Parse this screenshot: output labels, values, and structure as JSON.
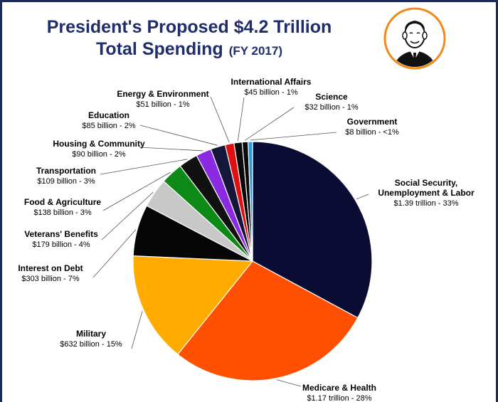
{
  "header": {
    "title_line1": "President's Proposed $4.2 Trillion",
    "title_line2": "Total Spending",
    "title_suffix": "(FY 2017)"
  },
  "avatar": {
    "icon": "president-portrait-icon",
    "ring_color": "#f08a1c"
  },
  "chart_data": {
    "type": "pie",
    "title": "President's Proposed $4.2 Trillion Total Spending (FY 2017)",
    "slices": [
      {
        "name": "Social Security, Unemployment & Labor",
        "display_name": "Social Security,\nUnemployment & Labor",
        "amount_label": "$1.39 trillion - 33%",
        "value": 33,
        "color": "#0b0c33"
      },
      {
        "name": "Medicare & Health",
        "display_name": "Medicare & Health",
        "amount_label": "$1.17 trillion - 28%",
        "value": 28,
        "color": "#ff4f00"
      },
      {
        "name": "Military",
        "display_name": "Military",
        "amount_label": "$632 billion - 15%",
        "value": 15,
        "color": "#ffab00"
      },
      {
        "name": "Interest on Debt",
        "display_name": "Interest on Debt",
        "amount_label": "$303 billion - 7%",
        "value": 7,
        "color": "#050505"
      },
      {
        "name": "Veterans' Benefits",
        "display_name": "Veterans' Benefits",
        "amount_label": "$179 billion - 4%",
        "value": 4,
        "color": "#c8c8c8"
      },
      {
        "name": "Food & Agriculture",
        "display_name": "Food & Agriculture",
        "amount_label": "$138 billion - 3%",
        "value": 3,
        "color": "#0d8a15"
      },
      {
        "name": "Transportation",
        "display_name": "Transportation",
        "amount_label": "$109 billion - 3%",
        "value": 2.6,
        "color": "#111111"
      },
      {
        "name": "Housing & Community",
        "display_name": "Housing & Community",
        "amount_label": "$90 billion - 2%",
        "value": 2.1,
        "color": "#8a2be2"
      },
      {
        "name": "Education",
        "display_name": "Education",
        "amount_label": "$85 billion - 2%",
        "value": 2.0,
        "color": "#14163a"
      },
      {
        "name": "Energy & Environment",
        "display_name": "Energy & Environment",
        "amount_label": "$51 billion - 1%",
        "value": 1.2,
        "color": "#e01010"
      },
      {
        "name": "International Affairs",
        "display_name": "International Affairs",
        "amount_label": "$45 billion - 1%",
        "value": 1.1,
        "color": "#0a0a0a"
      },
      {
        "name": "Science",
        "display_name": "Science",
        "amount_label": "$32 billion - 1%",
        "value": 0.8,
        "color": "#0a0a0a"
      },
      {
        "name": "Government",
        "display_name": "Government",
        "amount_label": "$8 billion - <1%",
        "value": 0.6,
        "color": "#2a9be0"
      }
    ]
  }
}
